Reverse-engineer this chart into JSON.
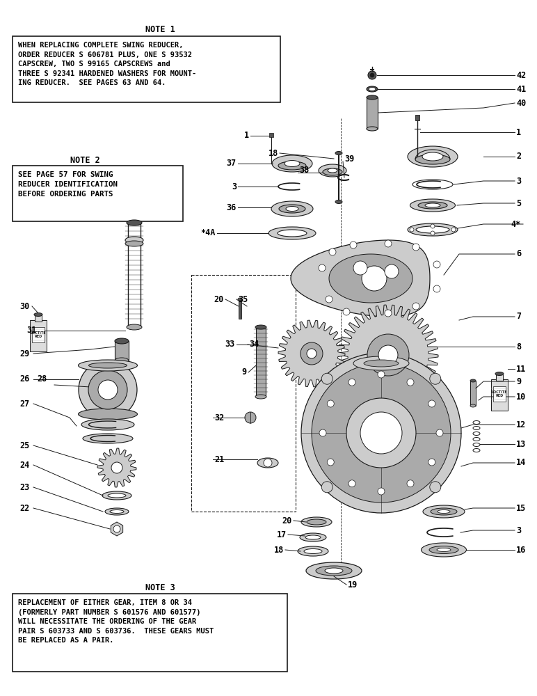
{
  "bg_color": "#ffffff",
  "fig_width": 7.72,
  "fig_height": 10.0,
  "note1_title": "NOTE 1",
  "note1_text": "WHEN REPLACING COMPLETE SWING REDUCER,\nORDER REDUCER S 606781 PLUS, ONE S 93532\nCAPSCREW, TWO S 99165 CAPSCREWS and\nTHREE S 92341 HARDENED WASHERS FOR MOUNT-\nING REDUCER.  SEE PAGES 63 AND 64.",
  "note2_title": "NOTE 2",
  "note2_text": "SEE PAGE 57 FOR SWING\nREDUCER IDENTIFICATION\nBEFORE ORDERING PARTS",
  "note3_title": "NOTE 3",
  "note3_text": "REPLACEMENT OF EITHER GEAR, ITEM 8 OR 34\n(FORMERLY PART NUMBER S 601576 AND 601577)\nWILL NECESSITATE THE ORDERING OF THE GEAR\nPAIR S 603733 AND S 603736.  THESE GEARS MUST\nBE REPLACED AS A PAIR.",
  "text_color": "#000000",
  "box_edge_color": "#000000",
  "lw": 0.8,
  "gray_dark": "#1a1a1a",
  "gray_mid": "#555555",
  "gray_light": "#aaaaaa",
  "gray_fill": "#cccccc",
  "white": "#ffffff"
}
